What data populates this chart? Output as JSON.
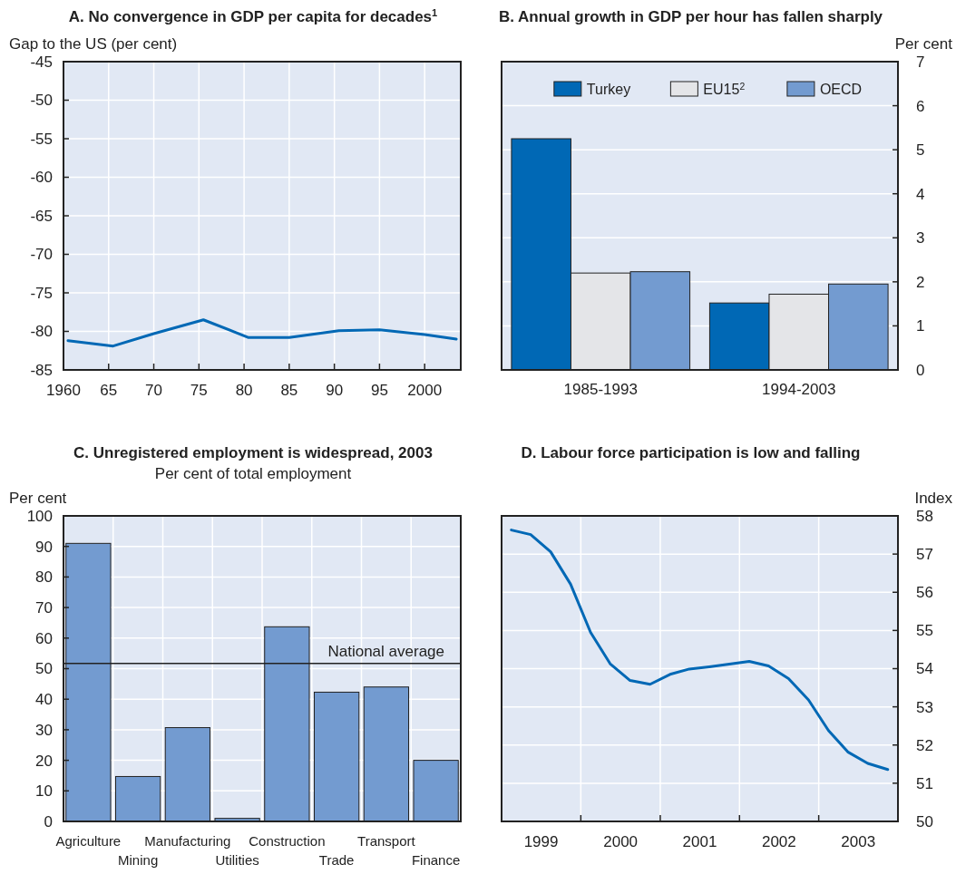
{
  "chart_data": [
    {
      "type": "line",
      "title": "A. No convergence in GDP per capita for decades$^{1}$",
      "ylabel": "Gap to the US (per cent)",
      "x": [
        1960.5,
        1965.5,
        1970,
        1975.5,
        1980.5,
        1985,
        1990.5,
        1995,
        2000,
        2003.5
      ],
      "series": [
        {
          "color": "#0068b5",
          "values": [
            -81.2,
            -81.9,
            -80.3,
            -78.5,
            -80.8,
            -80.8,
            -79.9,
            -79.8,
            -80.4,
            -81.0
          ]
        }
      ],
      "xlim": [
        1960,
        2004
      ],
      "xticks": [
        1960,
        {
          "value": 1965,
          "label": "65"
        },
        {
          "value": 1970,
          "label": "70"
        },
        {
          "value": 1975,
          "label": "75"
        },
        {
          "value": 1980,
          "label": "80"
        },
        {
          "value": 1985,
          "label": "85"
        },
        {
          "value": 1990,
          "label": "90"
        },
        {
          "value": 1995,
          "label": "95"
        },
        2000
      ],
      "ylim": [
        -85,
        -45
      ],
      "yticks": [
        -85,
        -80,
        -75,
        -70,
        -65,
        -60,
        -55,
        -50,
        -45
      ],
      "grid": true
    },
    {
      "type": "bar",
      "title": "B. Annual growth in GDP per hour has fallen sharply",
      "y2label": "Per cent",
      "categories": [
        "1985-1993",
        "1994-2003"
      ],
      "series": [
        {
          "name": "Turkey",
          "color": "#0068b5",
          "values": [
            5.25,
            1.52
          ],
          "axis": "y2"
        },
        {
          "name": "EU15$^{2}$",
          "color": "#e4e5e8",
          "values": [
            2.2,
            1.72
          ],
          "axis": "y2"
        },
        {
          "name": "OECD",
          "color": "#739bd0",
          "values": [
            2.23,
            1.95
          ],
          "axis": "y2"
        }
      ],
      "y2lim": [
        0,
        7
      ],
      "y2ticks": [
        0,
        1,
        2,
        3,
        4,
        5,
        6,
        7
      ],
      "grid": "y",
      "legend": "top"
    },
    {
      "type": "bar",
      "title": "C.  Unregistered employment is widespread, 2003",
      "subtitle": "Per cent of total employment",
      "ylabel": "Per cent",
      "categories": [
        "Agriculture",
        "Mining",
        "Manufacturing",
        "Utilities",
        "Construction",
        "Trade",
        "Transport",
        "Finance"
      ],
      "series": [
        {
          "color": "#739bd0",
          "values": [
            91,
            14.7,
            30.7,
            1,
            63.7,
            42.3,
            44,
            20
          ]
        }
      ],
      "ylim": [
        0,
        100
      ],
      "yticks": [
        0,
        10,
        20,
        30,
        40,
        50,
        60,
        70,
        80,
        90,
        100
      ],
      "grid": true,
      "ref_lines": [
        {
          "axis": "y",
          "value": 51.7,
          "label": "National average",
          "color": "#222222"
        }
      ]
    },
    {
      "type": "line",
      "title": "D. Labour force participation is low and falling",
      "y2label": "Index",
      "x": [
        "1999-02-15",
        "1999-05-15",
        "1999-08-15",
        "1999-11-15",
        "2000-02-15",
        "2000-05-15",
        "2000-08-15",
        "2000-11-15",
        "2001-02-15",
        "2001-05-15",
        "2001-08-15",
        "2001-11-15",
        "2002-02-15",
        "2002-05-15",
        "2002-08-15",
        "2002-11-15",
        "2003-02-15",
        "2003-05-15",
        "2003-08-15",
        "2003-11-15"
      ],
      "series": [
        {
          "color": "#0068b5",
          "axis": "y2",
          "values": [
            57.63,
            57.51,
            57.06,
            56.21,
            54.95,
            54.13,
            53.69,
            53.59,
            53.85,
            53.99,
            54.05,
            54.12,
            54.19,
            54.07,
            53.74,
            53.18,
            52.38,
            51.82,
            51.52,
            51.36
          ]
        }
      ],
      "xlim": [
        "1999-01-01",
        "2004-01-01"
      ],
      "xticks": [
        {
          "value": "2000-01-01",
          "label": null
        },
        {
          "value": "2001-01-01",
          "label": null
        },
        {
          "value": "2002-01-01",
          "label": null
        },
        {
          "value": "2003-01-01",
          "label": null
        },
        {
          "value": "1999-07-02",
          "label": "1999"
        },
        {
          "value": "2000-07-02",
          "label": "2000"
        },
        {
          "value": "2001-07-02",
          "label": "2001"
        },
        {
          "value": "2002-07-02",
          "label": "2002"
        },
        {
          "value": "2003-07-02",
          "label": "2003"
        }
      ],
      "y2lim": [
        50,
        58
      ],
      "y2ticks": [
        50,
        51,
        52,
        53,
        54,
        55,
        56,
        57,
        58
      ],
      "grid": true
    }
  ]
}
